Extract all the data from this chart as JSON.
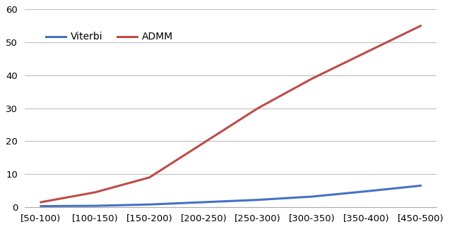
{
  "categories": [
    "[50-100)",
    "[100-150)",
    "[150-200)",
    "[200-250)",
    "[250-300)",
    "[300-350)",
    "[350-400)",
    "[450-500)"
  ],
  "viterbi": [
    0.3,
    0.4,
    0.8,
    1.5,
    2.2,
    3.2,
    4.8,
    6.5
  ],
  "admm": [
    1.5,
    4.5,
    9.0,
    19.5,
    30.0,
    39.0,
    47.0,
    55.0
  ],
  "viterbi_color": "#4472C4",
  "admm_color": "#BE4B48",
  "viterbi_label": "Viterbi",
  "admm_label": "ADMM",
  "ylim": [
    0,
    60
  ],
  "yticks": [
    0,
    10,
    20,
    30,
    40,
    50,
    60
  ],
  "linewidth": 2.2,
  "background_color": "#FFFFFF",
  "grid_color": "#BEBEBE",
  "legend_fontsize": 10,
  "tick_fontsize": 9.5
}
